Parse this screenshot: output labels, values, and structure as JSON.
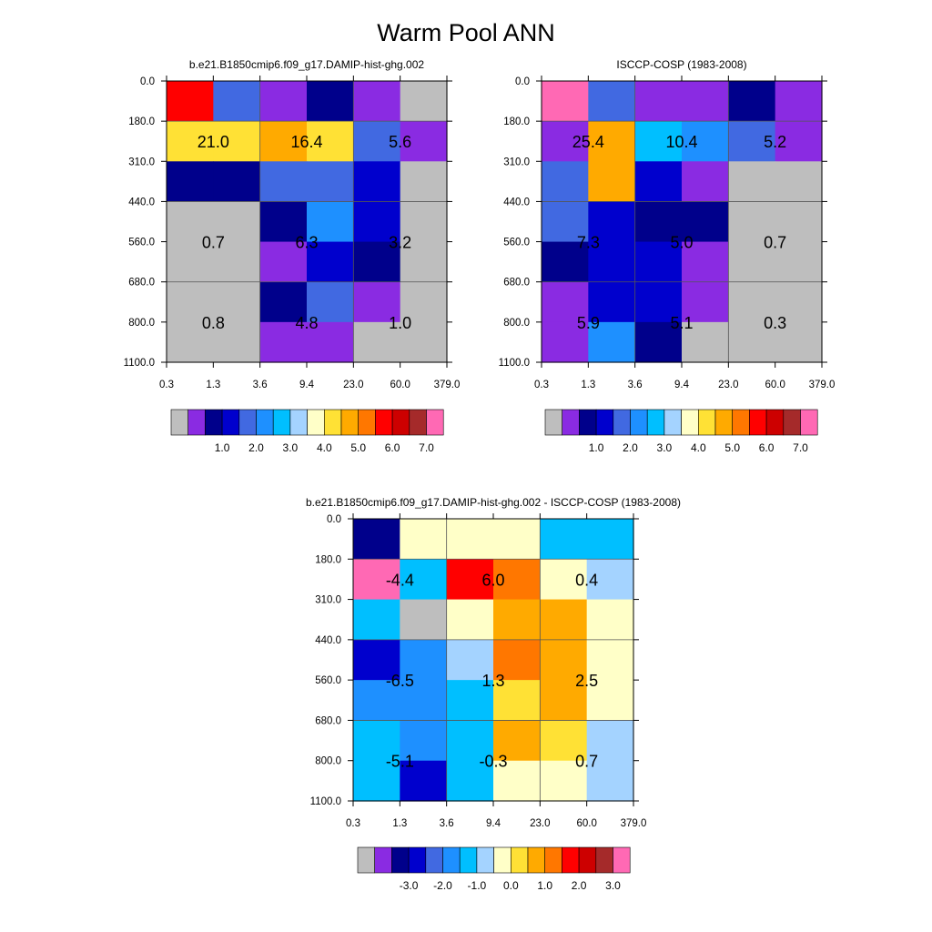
{
  "figure_title": "Warm Pool ANN",
  "palettes": {
    "mean": [
      "#bebebe",
      "#8a2be2",
      "#00008b",
      "#0000cd",
      "#4169e1",
      "#1e90ff",
      "#00bfff",
      "#a4d3ff",
      "#ffffc8",
      "#ffe135",
      "#ffaa00",
      "#ff7700",
      "#ff0000",
      "#cd0000",
      "#a52a2a",
      "#ff69b4"
    ],
    "diff": [
      "#bebebe",
      "#8a2be2",
      "#00008b",
      "#0000cd",
      "#4169e1",
      "#1e90ff",
      "#00bfff",
      "#a4d3ff",
      "#ffffc8",
      "#ffe135",
      "#ffaa00",
      "#ff7700",
      "#ff0000",
      "#cd0000",
      "#a52a2a",
      "#ff69b4"
    ]
  },
  "chart_data": [
    {
      "type": "heatmap",
      "panel": "model",
      "title": "b.e21.B1850cmip6.f09_g17.DAMIP-hist-ghg.002",
      "x_ticks": [
        "0.3",
        "1.3",
        "3.6",
        "9.4",
        "23.0",
        "60.0",
        "379.0"
      ],
      "y_ticks": [
        "0.0",
        "180.0",
        "310.0",
        "440.0",
        "560.0",
        "680.0",
        "800.0",
        "1100.0"
      ],
      "cells": [
        [
          12,
          4,
          1,
          2,
          1,
          0
        ],
        [
          9,
          9,
          10,
          9,
          4,
          1
        ],
        [
          2,
          2,
          4,
          4,
          3,
          0
        ],
        [
          0,
          0,
          2,
          5,
          3,
          0
        ],
        [
          0,
          0,
          1,
          3,
          2,
          0
        ],
        [
          0,
          0,
          2,
          4,
          1,
          0
        ],
        [
          0,
          0,
          1,
          1,
          0,
          0
        ]
      ],
      "labels": [
        {
          "text": "21.0",
          "col": 1,
          "row": 1.5
        },
        {
          "text": "16.4",
          "col": 3,
          "row": 1.5
        },
        {
          "text": "5.6",
          "col": 5,
          "row": 1.5
        },
        {
          "text": "0.7",
          "col": 1,
          "row": 4
        },
        {
          "text": "6.3",
          "col": 3,
          "row": 4
        },
        {
          "text": "3.2",
          "col": 5,
          "row": 4
        },
        {
          "text": "0.8",
          "col": 1,
          "row": 6
        },
        {
          "text": "4.8",
          "col": 3,
          "row": 6
        },
        {
          "text": "1.0",
          "col": 5,
          "row": 6
        }
      ],
      "colorbar_palette": "mean",
      "colorbar_labels": [
        "1.0",
        "2.0",
        "3.0",
        "4.0",
        "5.0",
        "6.0",
        "7.0"
      ]
    },
    {
      "type": "heatmap",
      "panel": "obs",
      "title": "ISCCP-COSP (1983-2008)",
      "x_ticks": [
        "0.3",
        "1.3",
        "3.6",
        "9.4",
        "23.0",
        "60.0",
        "379.0"
      ],
      "y_ticks": [
        "0.0",
        "180.0",
        "310.0",
        "440.0",
        "560.0",
        "680.0",
        "800.0",
        "1100.0"
      ],
      "cells": [
        [
          15,
          4,
          1,
          1,
          2,
          1
        ],
        [
          1,
          10,
          6,
          5,
          4,
          1
        ],
        [
          4,
          10,
          3,
          1,
          0,
          0
        ],
        [
          4,
          3,
          2,
          2,
          0,
          0
        ],
        [
          2,
          3,
          3,
          1,
          0,
          0
        ],
        [
          1,
          3,
          3,
          1,
          0,
          0
        ],
        [
          1,
          5,
          2,
          0,
          0,
          0
        ]
      ],
      "labels": [
        {
          "text": "25.4",
          "col": 1,
          "row": 1.5
        },
        {
          "text": "10.4",
          "col": 3,
          "row": 1.5
        },
        {
          "text": "5.2",
          "col": 5,
          "row": 1.5
        },
        {
          "text": "7.3",
          "col": 1,
          "row": 4
        },
        {
          "text": "5.0",
          "col": 3,
          "row": 4
        },
        {
          "text": "0.7",
          "col": 5,
          "row": 4
        },
        {
          "text": "5.9",
          "col": 1,
          "row": 6
        },
        {
          "text": "5.1",
          "col": 3,
          "row": 6
        },
        {
          "text": "0.3",
          "col": 5,
          "row": 6
        }
      ],
      "colorbar_palette": "mean",
      "colorbar_labels": [
        "1.0",
        "2.0",
        "3.0",
        "4.0",
        "5.0",
        "6.0",
        "7.0"
      ]
    },
    {
      "type": "heatmap",
      "panel": "diff",
      "title": "b.e21.B1850cmip6.f09_g17.DAMIP-hist-ghg.002 - ISCCP-COSP (1983-2008)",
      "x_ticks": [
        "0.3",
        "1.3",
        "3.6",
        "9.4",
        "23.0",
        "60.0",
        "379.0"
      ],
      "y_ticks": [
        "0.0",
        "180.0",
        "310.0",
        "440.0",
        "560.0",
        "680.0",
        "800.0",
        "1100.0"
      ],
      "cells": [
        [
          2,
          8,
          8,
          8,
          6,
          6
        ],
        [
          15,
          6,
          12,
          11,
          8,
          7
        ],
        [
          6,
          0,
          8,
          10,
          10,
          8
        ],
        [
          3,
          5,
          7,
          11,
          10,
          8
        ],
        [
          5,
          5,
          6,
          9,
          10,
          8
        ],
        [
          6,
          5,
          6,
          10,
          9,
          7
        ],
        [
          6,
          3,
          6,
          8,
          8,
          7
        ]
      ],
      "labels": [
        {
          "text": "-4.4",
          "col": 1,
          "row": 1.5
        },
        {
          "text": "6.0",
          "col": 3,
          "row": 1.5
        },
        {
          "text": "0.4",
          "col": 5,
          "row": 1.5
        },
        {
          "text": "-6.5",
          "col": 1,
          "row": 4
        },
        {
          "text": "1.3",
          "col": 3,
          "row": 4
        },
        {
          "text": "2.5",
          "col": 5,
          "row": 4
        },
        {
          "text": "-5.1",
          "col": 1,
          "row": 6
        },
        {
          "text": "-0.3",
          "col": 3,
          "row": 6
        },
        {
          "text": "0.7",
          "col": 5,
          "row": 6
        }
      ],
      "colorbar_palette": "diff",
      "colorbar_labels": [
        "-3.0",
        "-2.0",
        "-1.0",
        "0.0",
        "1.0",
        "2.0",
        "3.0"
      ]
    }
  ]
}
